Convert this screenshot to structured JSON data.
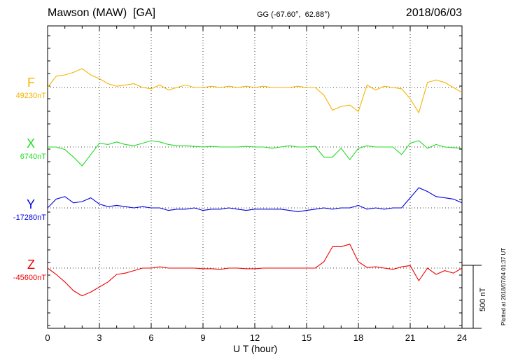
{
  "header": {
    "title": "Mawson (MAW)  [GA]",
    "coords": "GG (-67.60°,  62.88°)",
    "date": "2018/06/03"
  },
  "components": [
    {
      "name": "F",
      "baseline": "49230nT",
      "color": "#f5b400"
    },
    {
      "name": "X",
      "baseline": "6740nT",
      "color": "#22dd22"
    },
    {
      "name": "Y",
      "baseline": "-17280nT",
      "color": "#0000dd"
    },
    {
      "name": "Z",
      "baseline": "-45600nT",
      "color": "#ee0000"
    }
  ],
  "scale_label": "500 nT",
  "plotted_note": "Plotted at 2018/07/04 01:37 UT",
  "chart_data": {
    "type": "line",
    "xlabel": "U T (hour)",
    "xlim": [
      0,
      24
    ],
    "x_ticks": [
      "0",
      "3",
      "6",
      "9",
      "12",
      "15",
      "18",
      "21",
      "24"
    ],
    "grid": true,
    "x": [
      0,
      0.5,
      1,
      1.5,
      2,
      2.5,
      3,
      3.5,
      4,
      4.5,
      5,
      5.5,
      6,
      6.5,
      7,
      7.5,
      8,
      8.5,
      9,
      9.5,
      10,
      10.5,
      11,
      11.5,
      12,
      12.5,
      13,
      13.5,
      14,
      14.5,
      15,
      15.5,
      16,
      16.5,
      17,
      17.5,
      18,
      18.5,
      19,
      19.5,
      20,
      20.5,
      21,
      21.5,
      22,
      22.5,
      23,
      23.5,
      24
    ],
    "series": [
      {
        "name": "F",
        "unit": "nT",
        "values": [
          0,
          90,
          100,
          120,
          150,
          100,
          70,
          30,
          10,
          20,
          30,
          0,
          -10,
          20,
          -20,
          0,
          20,
          0,
          0,
          10,
          0,
          10,
          0,
          10,
          0,
          10,
          0,
          0,
          0,
          10,
          0,
          0,
          -60,
          -180,
          -150,
          -140,
          -190,
          20,
          -20,
          10,
          0,
          -10,
          -90,
          -200,
          40,
          60,
          40,
          0,
          -40
        ]
      },
      {
        "name": "X",
        "unit": "nT",
        "values": [
          0,
          0,
          -20,
          -80,
          -150,
          -60,
          30,
          20,
          40,
          20,
          10,
          30,
          50,
          40,
          20,
          10,
          10,
          5,
          0,
          5,
          0,
          0,
          0,
          5,
          0,
          0,
          -10,
          0,
          10,
          0,
          0,
          5,
          -80,
          -80,
          -10,
          -100,
          -10,
          10,
          0,
          0,
          0,
          -60,
          30,
          50,
          -10,
          20,
          0,
          -5,
          -10
        ]
      },
      {
        "name": "Y",
        "unit": "nT",
        "values": [
          0,
          70,
          90,
          40,
          50,
          80,
          30,
          10,
          20,
          10,
          0,
          10,
          0,
          0,
          -20,
          -10,
          -10,
          0,
          -20,
          -10,
          -10,
          0,
          -10,
          -20,
          -10,
          -10,
          -10,
          -10,
          -20,
          -30,
          -20,
          -10,
          0,
          -10,
          0,
          0,
          20,
          -10,
          0,
          -10,
          0,
          0,
          80,
          160,
          130,
          90,
          80,
          70,
          40
        ]
      },
      {
        "name": "Z",
        "unit": "nT",
        "values": [
          0,
          -50,
          -110,
          -180,
          -220,
          -190,
          -150,
          -110,
          -50,
          -40,
          -20,
          0,
          0,
          10,
          0,
          0,
          0,
          0,
          -5,
          -5,
          -10,
          0,
          0,
          -5,
          -5,
          0,
          0,
          0,
          0,
          0,
          0,
          0,
          50,
          170,
          170,
          190,
          50,
          5,
          10,
          0,
          -10,
          10,
          20,
          -100,
          0,
          -50,
          -20,
          -40,
          0
        ]
      }
    ],
    "scale_bar_nT": 500
  }
}
